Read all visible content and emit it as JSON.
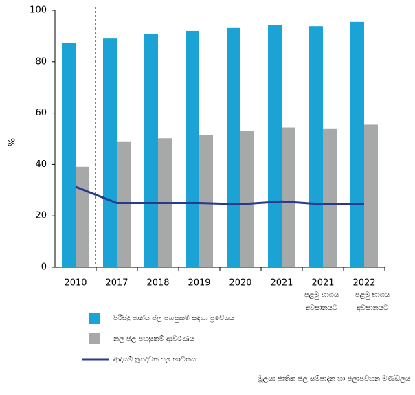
{
  "chart_data": {
    "type": "bar",
    "y_label": "%",
    "categories": [
      "2010",
      "2017",
      "2018",
      "2019",
      "2020",
      "2021",
      "2021",
      "2022"
    ],
    "category_notes": [
      null,
      null,
      null,
      null,
      null,
      null,
      [
        "පළමු භාගය",
        "අවසානයට"
      ],
      [
        "පළමු භාගය",
        "අවසානයට"
      ]
    ],
    "series": [
      {
        "name": "පිරිසිදු පානීය ජල පහසුකම් සඳහා ප්‍රවේශය",
        "color": "#1aa3d4",
        "kind": "bar",
        "values": [
          87.2,
          89,
          90.7,
          92,
          93.1,
          94.3,
          93.8,
          95.5
        ]
      },
      {
        "name": "නල ජල පහසුකම් ආවරණය",
        "color": "#a6a9a8",
        "kind": "bar",
        "values": [
          39.1,
          49,
          50.2,
          51.4,
          53.1,
          54.4,
          53.8,
          55.5
        ]
      },
      {
        "name": "ආදායම් නූපදවන ජල භාවිතය",
        "color": "#283a8c",
        "kind": "line",
        "values": [
          31.3,
          25,
          25,
          25,
          24.5,
          25.6,
          24.5,
          24.5
        ]
      }
    ],
    "ylim": [
      0,
      100
    ],
    "yticks": [
      0,
      20,
      40,
      60,
      80,
      100
    ],
    "source": "මූලය: ජාතික ජල සම්පාදන හා ජලාපවහන මණ්ඩලය"
  }
}
